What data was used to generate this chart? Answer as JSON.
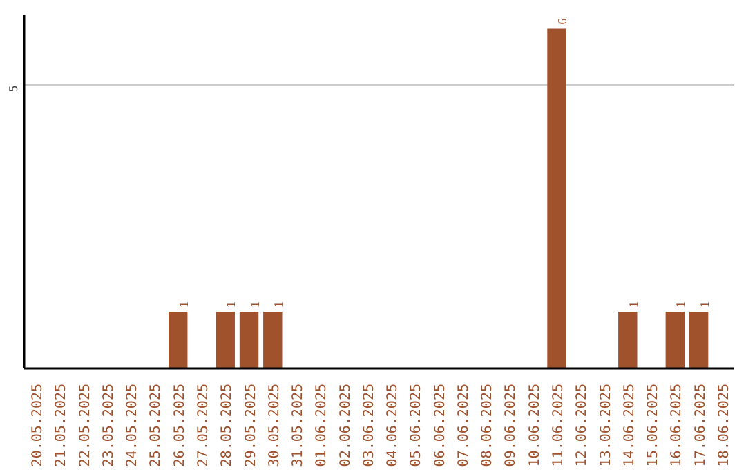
{
  "chart_data": {
    "type": "bar",
    "categories": [
      "20.05.2025",
      "21.05.2025",
      "22.05.2025",
      "23.05.2025",
      "24.05.2025",
      "25.05.2025",
      "26.05.2025",
      "27.05.2025",
      "28.05.2025",
      "29.05.2025",
      "30.05.2025",
      "31.05.2025",
      "01.06.2025",
      "02.06.2025",
      "03.06.2025",
      "04.06.2025",
      "05.06.2025",
      "06.06.2025",
      "07.06.2025",
      "08.06.2025",
      "09.06.2025",
      "10.06.2025",
      "11.06.2025",
      "12.06.2025",
      "13.06.2025",
      "14.06.2025",
      "15.06.2025",
      "16.06.2025",
      "17.06.2025",
      "18.06.2025"
    ],
    "values": [
      0,
      0,
      0,
      0,
      0,
      0,
      1,
      0,
      1,
      1,
      1,
      0,
      0,
      0,
      0,
      0,
      0,
      0,
      0,
      0,
      0,
      0,
      6,
      0,
      0,
      1,
      0,
      1,
      1,
      0
    ],
    "value_labels": [
      null,
      null,
      null,
      null,
      null,
      null,
      "1",
      null,
      "1",
      "1",
      "1",
      null,
      null,
      null,
      null,
      null,
      null,
      null,
      null,
      null,
      null,
      null,
      "6",
      null,
      null,
      "1",
      null,
      "1",
      "1",
      null
    ],
    "color": "#a0522d",
    "ylim": [
      0,
      6.25
    ],
    "yticks": [
      5
    ],
    "grid": "y"
  }
}
